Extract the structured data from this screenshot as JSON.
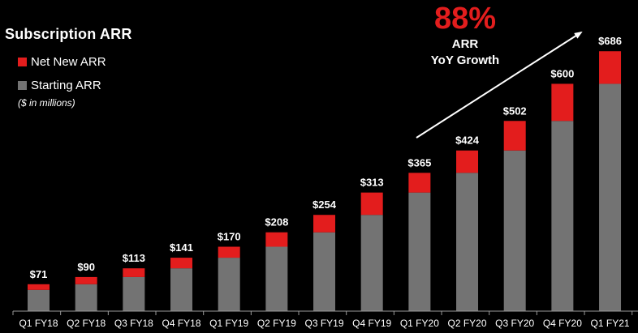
{
  "chart_data": {
    "type": "bar",
    "title": "Subscription ARR",
    "units_note": "($ in millions)",
    "categories": [
      "Q1 FY18",
      "Q2 FY18",
      "Q3 FY18",
      "Q4 FY18",
      "Q1 FY19",
      "Q2 FY19",
      "Q3 FY19",
      "Q4 FY19",
      "Q1 FY20",
      "Q2 FY20",
      "Q3 FY20",
      "Q4 FY20",
      "Q1 FY21"
    ],
    "series": [
      {
        "name": "Starting ARR",
        "color": "#737373",
        "values": [
          56,
          71,
          90,
          113,
          141,
          170,
          208,
          254,
          313,
          365,
          424,
          502,
          600
        ]
      },
      {
        "name": "Net New ARR",
        "color": "#e31d1d",
        "values": [
          15,
          19,
          23,
          28,
          29,
          38,
          46,
          59,
          52,
          59,
          78,
          98,
          86
        ]
      }
    ],
    "totals": [
      71,
      90,
      113,
      141,
      170,
      208,
      254,
      313,
      365,
      424,
      502,
      600,
      686
    ],
    "total_labels": [
      "$71",
      "$90",
      "$113",
      "$141",
      "$170",
      "$208",
      "$254",
      "$313",
      "$365",
      "$424",
      "$502",
      "$600",
      "$686"
    ],
    "stacked": true,
    "ylim": [
      0,
      700
    ],
    "grid": false,
    "legend_position": "top-left",
    "annotation": {
      "value": "88%",
      "line1": "ARR",
      "line2": "YoY Growth",
      "color": "#e31d1d"
    }
  }
}
